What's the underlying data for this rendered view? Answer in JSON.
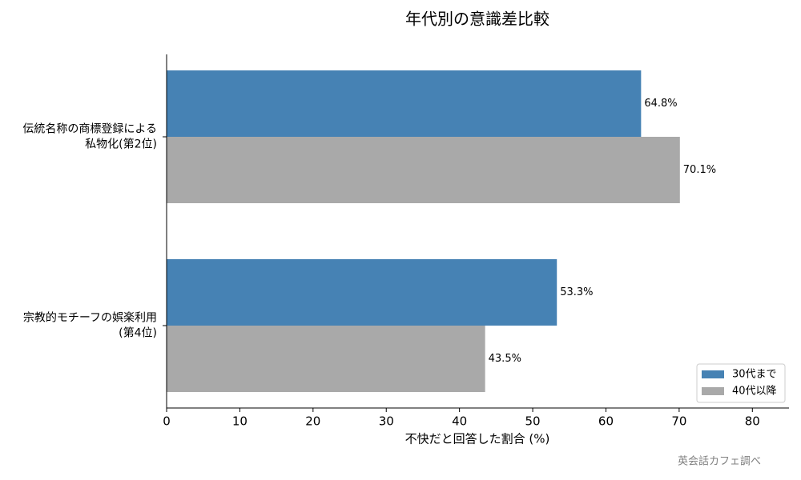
{
  "chart_data": {
    "type": "barh",
    "title": "年代別の意識差比較",
    "xlabel": "不快だと回答した割合 (%)",
    "source": "英会話カフェ調べ",
    "categories": [
      [
        "伝統名称の商標登録による",
        "私物化(第2位)"
      ],
      [
        "宗教的モチーフの娯楽利用",
        "(第4位)"
      ]
    ],
    "series": [
      {
        "name": "30代まで",
        "color": "#4682b4",
        "values": [
          64.8,
          53.3
        ],
        "value_labels": [
          "64.8%",
          "53.3%"
        ]
      },
      {
        "name": "40代以降",
        "color": "#a9a9a9",
        "values": [
          70.1,
          43.5
        ],
        "value_labels": [
          "70.1%",
          "43.5%"
        ]
      }
    ],
    "xlim": [
      0,
      85
    ],
    "xticks": [
      0,
      10,
      20,
      30,
      40,
      50,
      60,
      70,
      80
    ],
    "legend": "lower right"
  }
}
